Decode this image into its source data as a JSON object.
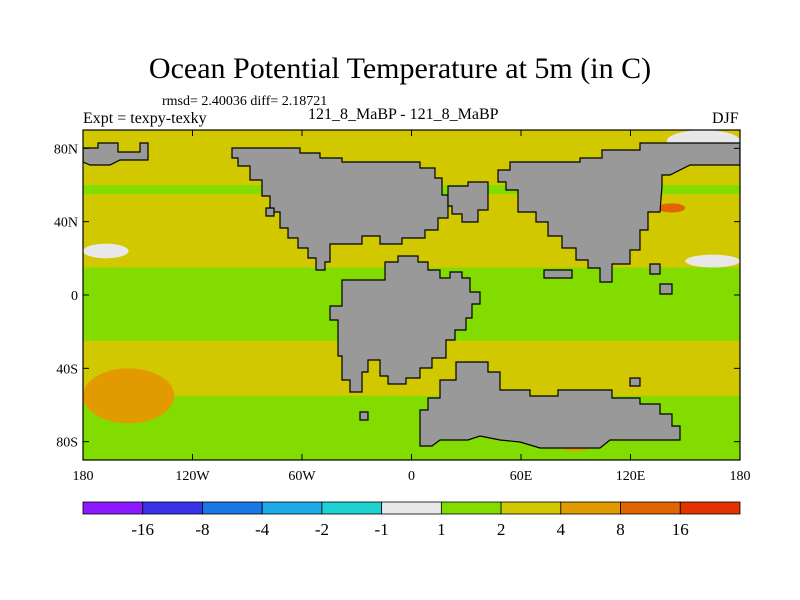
{
  "chart_data": {
    "type": "heatmap",
    "title": "Ocean Potential Temperature at 5m (in C)",
    "stats_label": "rmsd= 2.40036 diff= 2.18721",
    "expt_label": "Expt = texpy-texky",
    "center_label": "121_8_MaBP - 121_8_MaBP",
    "season": "DJF",
    "xlim": [
      -180,
      180
    ],
    "ylim": [
      -90,
      90
    ],
    "x_ticks": [
      {
        "value": -180,
        "label": "180"
      },
      {
        "value": -120,
        "label": "120W"
      },
      {
        "value": -60,
        "label": "60W"
      },
      {
        "value": 0,
        "label": "0"
      },
      {
        "value": 60,
        "label": "60E"
      },
      {
        "value": 120,
        "label": "120E"
      },
      {
        "value": 180,
        "label": "180"
      }
    ],
    "y_ticks": [
      {
        "value": 80,
        "label": "80N"
      },
      {
        "value": 40,
        "label": "40N"
      },
      {
        "value": 0,
        "label": "0"
      },
      {
        "value": -40,
        "label": "40S"
      },
      {
        "value": -80,
        "label": "80S"
      }
    ],
    "colorbar": {
      "colors": [
        "#8c1aff",
        "#3a32e6",
        "#1a78e6",
        "#1eaae6",
        "#1ed2d2",
        "#e8e8e8",
        "#82dc00",
        "#d2c800",
        "#e19b00",
        "#e16400",
        "#e13200"
      ],
      "boundaries": [
        "-16",
        "-8",
        "-4",
        "-2",
        "-1",
        "1",
        "2",
        "4",
        "8",
        "16"
      ]
    },
    "land_color": "#999999",
    "regions": [
      {
        "value_class": "2 to 4",
        "color": "#d2c800",
        "lon": [
          -180,
          180
        ],
        "lat": [
          60,
          90
        ]
      },
      {
        "value_class": "2 to 4",
        "color": "#d2c800",
        "lon": [
          -180,
          180
        ],
        "lat": [
          15,
          55
        ]
      },
      {
        "value_class": "1 to 2",
        "color": "#82dc00",
        "lon": [
          -180,
          180
        ],
        "lat": [
          -25,
          15
        ]
      },
      {
        "value_class": "2 to 4",
        "color": "#d2c800",
        "lon": [
          -180,
          180
        ],
        "lat": [
          -55,
          -25
        ]
      },
      {
        "value_class": "4 to 8",
        "color": "#e19b00",
        "lon": [
          -180,
          -130
        ],
        "lat": [
          -70,
          -40
        ]
      },
      {
        "value_class": "4 to 8",
        "color": "#e19b00",
        "lon": [
          70,
          110
        ],
        "lat": [
          -85,
          -60
        ]
      },
      {
        "value_class": "8 to 16",
        "color": "#e16400",
        "lon": [
          135,
          150
        ],
        "lat": [
          45,
          50
        ]
      },
      {
        "value_class": "-1 to 1",
        "color": "#e8e8e8",
        "lon": [
          -180,
          -155
        ],
        "lat": [
          20,
          28
        ]
      },
      {
        "value_class": "-1 to 1",
        "color": "#e8e8e8",
        "lon": [
          150,
          180
        ],
        "lat": [
          15,
          22
        ]
      },
      {
        "value_class": "-1 to 1",
        "color": "#e8e8e8",
        "lon": [
          140,
          180
        ],
        "lat": [
          78,
          90
        ]
      }
    ]
  }
}
